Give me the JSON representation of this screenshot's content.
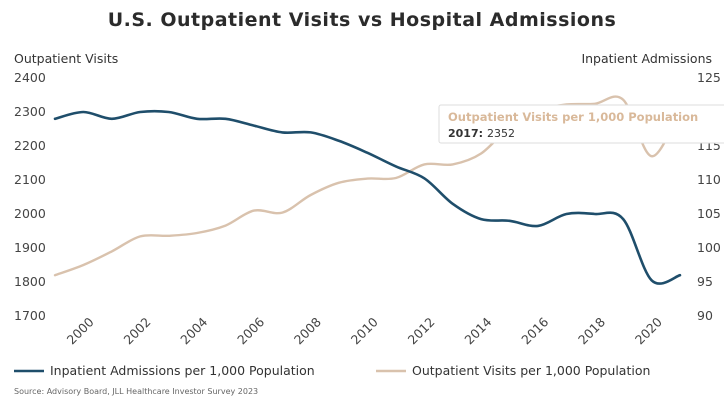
{
  "chart_data": {
    "type": "line",
    "title": "U.S. Outpatient Visits vs Hospital Admissions",
    "ylabel_left": "Outpatient Visits",
    "ylabel_right": "Inpatient Admissions",
    "ylim_left": [
      1700,
      2400
    ],
    "ylim_right": [
      90,
      125
    ],
    "yticks_left": [
      1700,
      1800,
      1900,
      2000,
      2100,
      2200,
      2300,
      2400
    ],
    "yticks_right": [
      90,
      95,
      100,
      105,
      110,
      115,
      120,
      125
    ],
    "xlim": [
      1999,
      2021
    ],
    "xticks": [
      2000,
      2002,
      2004,
      2006,
      2008,
      2010,
      2012,
      2014,
      2016,
      2018,
      2020
    ],
    "grid": false,
    "legend_position": "bottom",
    "series": [
      {
        "name": "Inpatient Admissions per 1,000 Population",
        "axis": "left",
        "color": "#1f4e6b",
        "x": [
          1999,
          2000,
          2001,
          2002,
          2003,
          2004,
          2005,
          2006,
          2007,
          2008,
          2009,
          2010,
          2011,
          2012,
          2013,
          2014,
          2015,
          2016,
          2017,
          2018,
          2019,
          2020,
          2021
        ],
        "y": [
          2280,
          2300,
          2280,
          2300,
          2300,
          2280,
          2280,
          2260,
          2240,
          2240,
          2215,
          2180,
          2140,
          2105,
          2030,
          1985,
          1980,
          1965,
          2000,
          2000,
          1985,
          1805,
          1820
        ]
      },
      {
        "name": "Outpatient Visits per 1,000 Population",
        "axis": "right",
        "color": "#d9c2ad",
        "x": [
          1999,
          2000,
          2001,
          2002,
          2003,
          2004,
          2005,
          2006,
          2007,
          2008,
          2009,
          2010,
          2011,
          2012,
          2013,
          2014,
          2015,
          2016,
          2017,
          2018,
          2019,
          2020,
          2021
        ],
        "y": [
          96,
          97.5,
          99.5,
          101.7,
          101.8,
          102.2,
          103.3,
          105.5,
          105.2,
          107.8,
          109.6,
          110.2,
          110.3,
          112.3,
          112.3,
          113.9,
          117.8,
          120.2,
          121.1,
          121.2,
          121.8,
          113.5,
          120.4
        ]
      }
    ],
    "annotations": [
      {
        "label": "Outpatient Visits per 1,000 Population",
        "point_label": "2017:",
        "point_value": "2352"
      }
    ]
  },
  "source": "Source: Advisory Board, JLL Healthcare Investor Survey 2023"
}
